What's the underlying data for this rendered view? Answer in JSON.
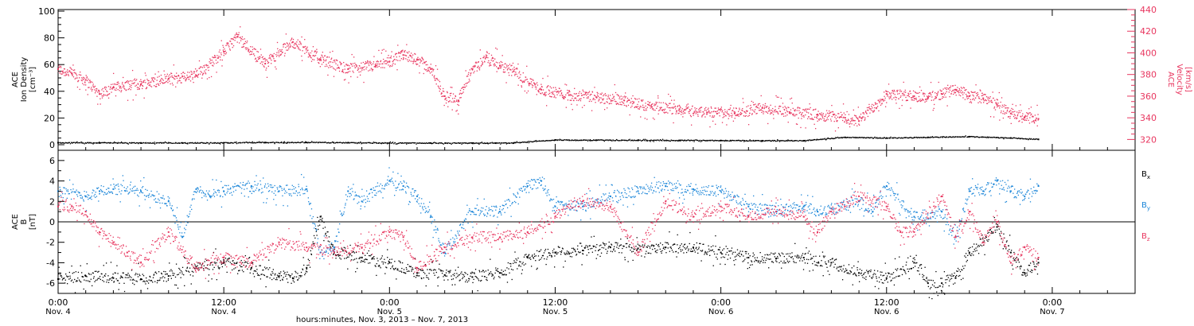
{
  "colors": {
    "axis": "#000000",
    "velocity": "#e8365f",
    "bx": "#000000",
    "by": "#1a85d8",
    "bz": "#e8365f"
  },
  "chart_data": [
    {
      "type": "scatter",
      "panel": "plasma",
      "ylabel_left": [
        "ACE",
        "Ion Density",
        "[cm⁻³]"
      ],
      "ylabel_right": [
        "ACE",
        "Velocity",
        "[km/s]"
      ],
      "ylim_left": [
        0,
        100
      ],
      "ylim_right": [
        310,
        440
      ],
      "left_ticks": [
        "0",
        "20",
        "40",
        "60",
        "80",
        "100"
      ],
      "right_ticks": [
        "320",
        "340",
        "360",
        "380",
        "400",
        "420",
        "440"
      ],
      "density_series": {
        "axis": "left",
        "x_hours": [
          0,
          3,
          6,
          9,
          12,
          15,
          18,
          21,
          24,
          27,
          30,
          33,
          36,
          39,
          42,
          45,
          48,
          51,
          54,
          57,
          60,
          63,
          66,
          69,
          71
        ],
        "values": [
          1.5,
          1.4,
          1.3,
          1.3,
          1.4,
          1.6,
          1.7,
          1.5,
          1.3,
          1.2,
          1.2,
          1.3,
          3.5,
          3.4,
          3.3,
          3.2,
          3.1,
          3.0,
          3.0,
          5.5,
          5.0,
          5.5,
          6.0,
          5.0,
          4.0
        ]
      },
      "velocity_series": {
        "axis": "right",
        "x_hours": [
          0,
          1,
          2,
          3,
          4,
          6,
          8,
          10,
          12,
          13,
          15,
          17,
          19,
          21,
          23,
          24,
          25,
          26,
          27,
          28,
          29,
          30,
          31,
          32,
          33,
          35,
          37,
          39,
          41,
          43,
          45,
          47,
          49,
          51,
          53,
          55,
          57,
          58,
          60,
          62,
          63,
          64,
          65,
          66,
          67,
          68,
          69,
          70,
          71
        ],
        "values": [
          385,
          381,
          375,
          362,
          368,
          371,
          376,
          379,
          401,
          415,
          390,
          410,
          394,
          385,
          388,
          392,
          398,
          394,
          385,
          360,
          356,
          385,
          396,
          388,
          383,
          366,
          361,
          359,
          356,
          350,
          348,
          345,
          344,
          349,
          345,
          343,
          340,
          337,
          362,
          360,
          359,
          362,
          366,
          360,
          358,
          352,
          344,
          340,
          339
        ]
      }
    },
    {
      "type": "scatter",
      "panel": "magnetic",
      "ylabel_left": [
        "ACE",
        "B",
        "[nT]"
      ],
      "ylim_left": [
        -7,
        7
      ],
      "left_ticks": [
        "-6",
        "-4",
        "-2",
        "0",
        "2",
        "4",
        "6"
      ],
      "series": [
        {
          "name": "Bx",
          "label_main": "B",
          "label_sub": "x",
          "x_hours": [
            0,
            2,
            4,
            6,
            8,
            10,
            12,
            14,
            16,
            17,
            18,
            19,
            20,
            22,
            24,
            26,
            28,
            30,
            32,
            34,
            36,
            38,
            40,
            42,
            44,
            46,
            48,
            50,
            52,
            54,
            56,
            58,
            60,
            62,
            63,
            64,
            65,
            66,
            67,
            68,
            69,
            70,
            71
          ],
          "values": [
            -5.6,
            -5.3,
            -5.5,
            -5.6,
            -5.3,
            -4.5,
            -4.0,
            -4.5,
            -5.3,
            -5.5,
            -4.5,
            0.5,
            -3.0,
            -3.5,
            -4.0,
            -5.0,
            -5.2,
            -5.4,
            -5.0,
            -3.5,
            -3.0,
            -2.8,
            -2.5,
            -2.6,
            -2.5,
            -2.5,
            -3.0,
            -3.5,
            -3.6,
            -3.5,
            -4.0,
            -5.0,
            -5.5,
            -4.0,
            -6.0,
            -6.0,
            -5.5,
            -3.0,
            -2.0,
            -0.5,
            -3.0,
            -5.0,
            -4.0
          ]
        },
        {
          "name": "By",
          "label_main": "B",
          "label_sub": "y",
          "x_hours": [
            0,
            2,
            3,
            4,
            6,
            8,
            9,
            10,
            11,
            12,
            14,
            16,
            18,
            19,
            20,
            21,
            22,
            24,
            25,
            26,
            27,
            28,
            30,
            32,
            34,
            35,
            36,
            38,
            40,
            42,
            44,
            46,
            48,
            50,
            52,
            54,
            55,
            56,
            58,
            59,
            60,
            62,
            64,
            65,
            66,
            67,
            68,
            69,
            70,
            71
          ],
          "values": [
            3.0,
            2.5,
            3.0,
            3.2,
            3.0,
            2.0,
            -1.5,
            3.2,
            2.5,
            3.0,
            3.5,
            3.0,
            3.2,
            -3.0,
            -2.5,
            3.0,
            2.0,
            4.0,
            3.5,
            2.5,
            0.5,
            -3.0,
            1.0,
            1.0,
            3.5,
            4.0,
            1.5,
            1.5,
            2.5,
            3.0,
            3.5,
            3.2,
            3.0,
            1.5,
            1.0,
            1.5,
            1.0,
            1.3,
            2.0,
            1.0,
            3.5,
            0.5,
            1.0,
            -1.5,
            3.0,
            3.0,
            4.0,
            3.0,
            2.5,
            3.5
          ]
        },
        {
          "name": "Bz",
          "label_main": "B",
          "label_sub": "z",
          "x_hours": [
            0,
            1,
            2,
            3,
            4,
            5,
            6,
            8,
            10,
            12,
            14,
            16,
            18,
            20,
            22,
            24,
            25,
            26,
            28,
            30,
            32,
            34,
            36,
            38,
            40,
            42,
            44,
            46,
            48,
            50,
            52,
            54,
            55,
            56,
            58,
            60,
            61,
            62,
            64,
            65,
            66,
            67,
            68,
            69,
            70,
            71
          ],
          "values": [
            1.5,
            1.5,
            1.0,
            -1.0,
            -2.0,
            -3.0,
            -4.0,
            -1.0,
            -4.5,
            -3.5,
            -4.0,
            -2.0,
            -2.5,
            -3.0,
            -2.5,
            -1.0,
            -1.5,
            -4.5,
            -2.5,
            -1.5,
            -1.5,
            -1.0,
            0.5,
            2.0,
            1.5,
            -3.0,
            2.0,
            0.5,
            1.5,
            0.5,
            1.0,
            0.5,
            -1.0,
            1.0,
            2.5,
            1.5,
            -1.0,
            -1.0,
            2.5,
            -1.5,
            1.0,
            -2.0,
            0.0,
            -4.0,
            -2.5,
            -3.5
          ]
        }
      ]
    }
  ],
  "time_axis": {
    "xlabel": "hours:minutes, Nov.  3, 2013 – Nov.  7, 2013",
    "xlim_hours": [
      0,
      78
    ],
    "ticks": [
      {
        "hours": 0,
        "time": "0:00",
        "date": "Nov. 4"
      },
      {
        "hours": 12,
        "time": "12:00",
        "date": "Nov. 4"
      },
      {
        "hours": 24,
        "time": "0:00",
        "date": "Nov. 5"
      },
      {
        "hours": 36,
        "time": "12:00",
        "date": "Nov. 5"
      },
      {
        "hours": 48,
        "time": "0:00",
        "date": "Nov. 6"
      },
      {
        "hours": 60,
        "time": "12:00",
        "date": "Nov. 6"
      },
      {
        "hours": 72,
        "time": "0:00",
        "date": "Nov. 7"
      }
    ]
  }
}
